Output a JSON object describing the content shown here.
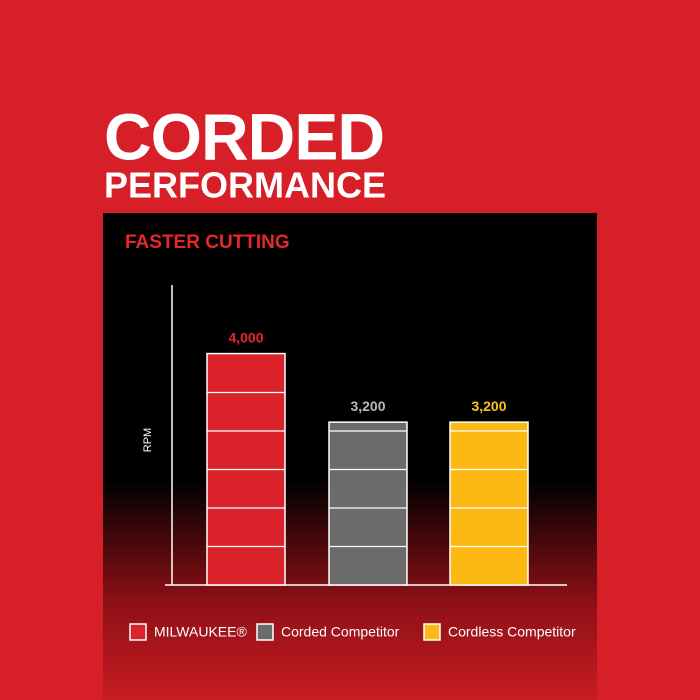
{
  "headline": {
    "line1": "CORDED",
    "line2": "PERFORMANCE"
  },
  "chart_data": {
    "type": "bar",
    "title": "FASTER CUTTING",
    "y_label": "RPM",
    "categories": [
      null
    ],
    "series": [
      {
        "name": "MILWAUKEE®",
        "color": "#d9222a",
        "label_color": "#e8262d",
        "values": [
          4000
        ],
        "value_labels": [
          "4,000"
        ]
      },
      {
        "name": "Corded Competitor",
        "color": "#6b6b6b",
        "label_color": "#b8b8b8",
        "values": [
          3200
        ],
        "value_labels": [
          "3,200"
        ]
      },
      {
        "name": "Cordless Competitor",
        "color": "#fdb913",
        "label_color": "#fdc020",
        "values": [
          3200
        ],
        "value_labels": [
          "3,200"
        ]
      }
    ],
    "ylim": [
      1300,
      4800
    ],
    "legend": "bottom"
  }
}
